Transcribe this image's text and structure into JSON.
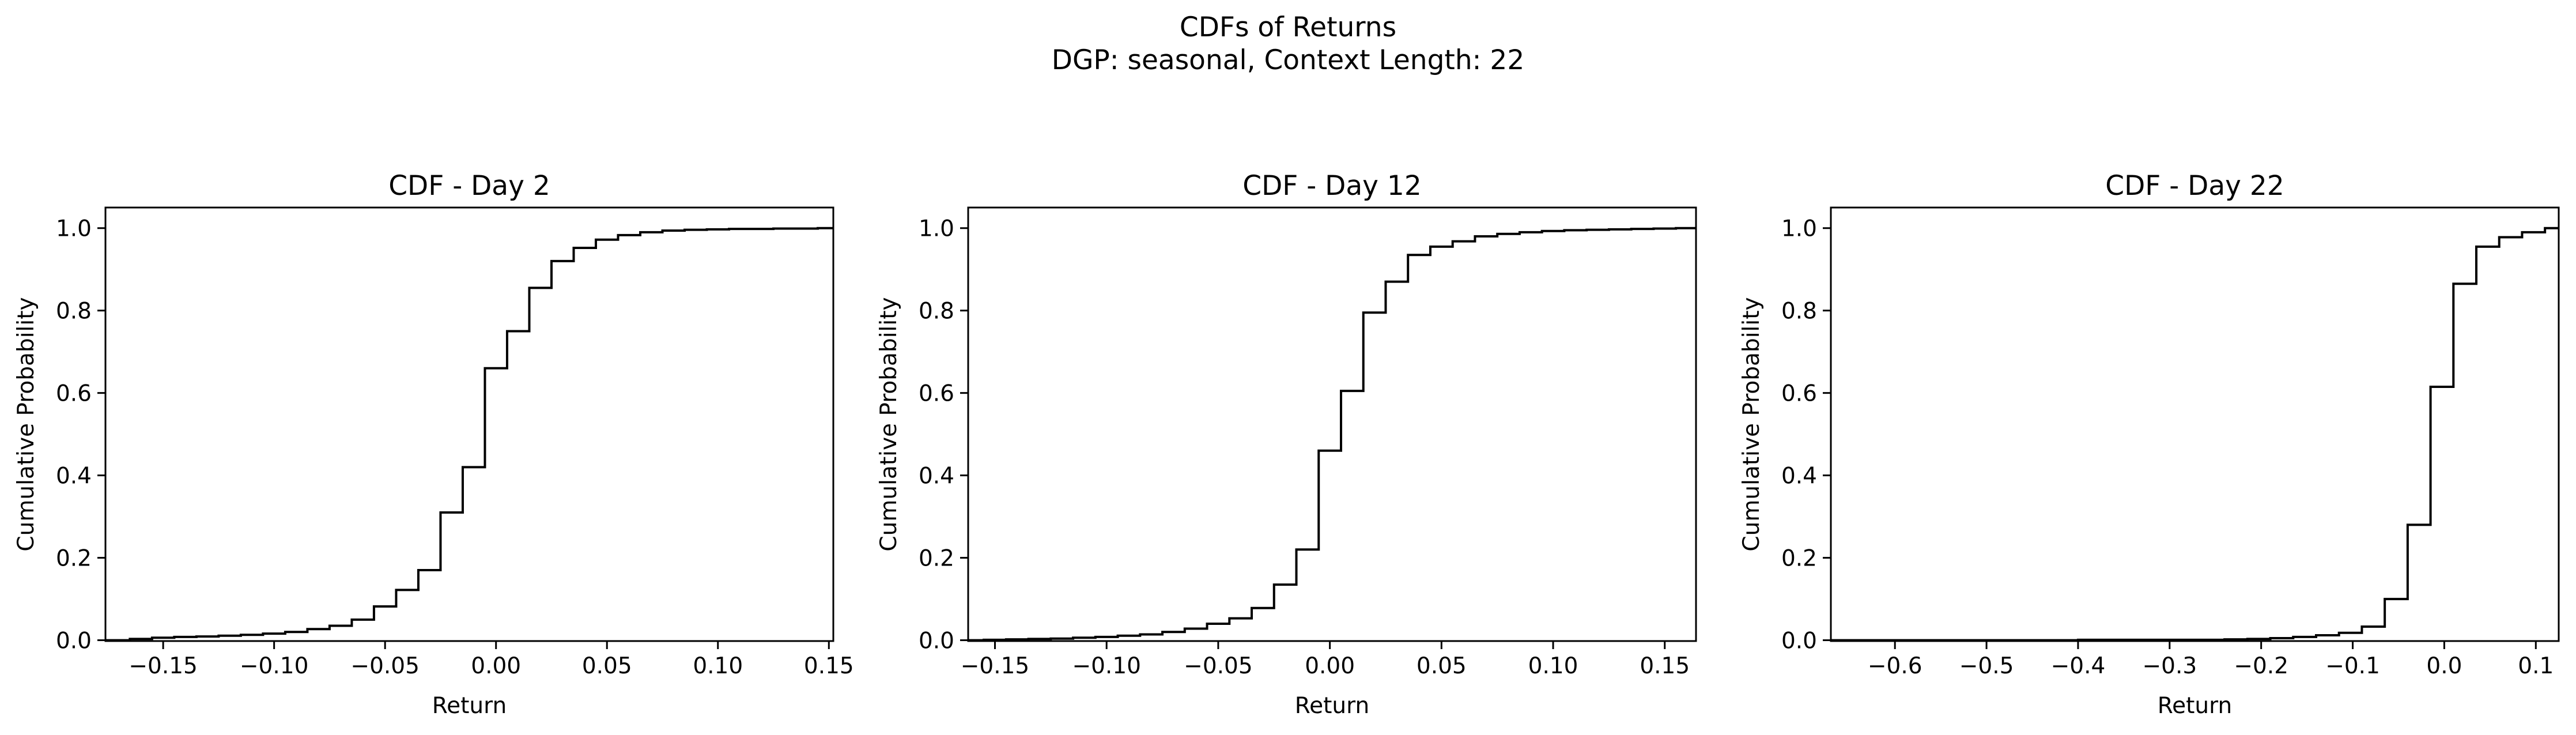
{
  "figure": {
    "title_line1": "CDFs of Returns",
    "title_line2": "DGP: seasonal, Context Length: 22"
  },
  "chart_data": [
    {
      "type": "line",
      "step": "post",
      "title": "CDF - Day 2",
      "xlabel": "Return",
      "ylabel": "Cumulative Probability",
      "xlim": [
        -0.176,
        0.152
      ],
      "ylim": [
        -0.002,
        1.05
      ],
      "xticks": [
        -0.15,
        -0.1,
        -0.05,
        0.0,
        0.05,
        0.1,
        0.15
      ],
      "xtick_labels": [
        "−0.15",
        "−0.10",
        "−0.05",
        "0.00",
        "0.05",
        "0.10",
        "0.15"
      ],
      "yticks": [
        0.0,
        0.2,
        0.4,
        0.6,
        0.8,
        1.0
      ],
      "ytick_labels": [
        "0.0",
        "0.2",
        "0.4",
        "0.6",
        "0.8",
        "1.0"
      ],
      "grid": false,
      "color": "#000000",
      "x": [
        -0.176,
        -0.165,
        -0.155,
        -0.145,
        -0.135,
        -0.125,
        -0.115,
        -0.105,
        -0.095,
        -0.085,
        -0.075,
        -0.065,
        -0.055,
        -0.045,
        -0.035,
        -0.025,
        -0.015,
        -0.005,
        0.005,
        0.015,
        0.025,
        0.035,
        0.045,
        0.055,
        0.065,
        0.075,
        0.085,
        0.095,
        0.105,
        0.115,
        0.125,
        0.135,
        0.145,
        0.152
      ],
      "y": [
        0.0,
        0.003,
        0.006,
        0.008,
        0.009,
        0.011,
        0.013,
        0.016,
        0.02,
        0.027,
        0.035,
        0.05,
        0.082,
        0.122,
        0.17,
        0.31,
        0.42,
        0.66,
        0.75,
        0.855,
        0.92,
        0.952,
        0.972,
        0.983,
        0.99,
        0.994,
        0.996,
        0.997,
        0.998,
        0.998,
        0.999,
        0.999,
        1.0,
        1.0
      ]
    },
    {
      "type": "line",
      "step": "post",
      "title": "CDF - Day 12",
      "xlabel": "Return",
      "ylabel": "Cumulative Probability",
      "xlim": [
        -0.162,
        0.164
      ],
      "ylim": [
        -0.002,
        1.05
      ],
      "xticks": [
        -0.15,
        -0.1,
        -0.05,
        0.0,
        0.05,
        0.1,
        0.15
      ],
      "xtick_labels": [
        "−0.15",
        "−0.10",
        "−0.05",
        "0.00",
        "0.05",
        "0.10",
        "0.15"
      ],
      "yticks": [
        0.0,
        0.2,
        0.4,
        0.6,
        0.8,
        1.0
      ],
      "ytick_labels": [
        "0.0",
        "0.2",
        "0.4",
        "0.6",
        "0.8",
        "1.0"
      ],
      "grid": false,
      "color": "#000000",
      "x": [
        -0.162,
        -0.155,
        -0.145,
        -0.135,
        -0.125,
        -0.115,
        -0.105,
        -0.095,
        -0.085,
        -0.075,
        -0.065,
        -0.055,
        -0.045,
        -0.035,
        -0.025,
        -0.015,
        -0.005,
        0.005,
        0.015,
        0.025,
        0.035,
        0.045,
        0.055,
        0.065,
        0.075,
        0.085,
        0.095,
        0.105,
        0.115,
        0.125,
        0.135,
        0.145,
        0.155,
        0.164
      ],
      "y": [
        0.0,
        0.001,
        0.002,
        0.003,
        0.004,
        0.006,
        0.008,
        0.011,
        0.014,
        0.02,
        0.028,
        0.04,
        0.053,
        0.078,
        0.135,
        0.22,
        0.46,
        0.605,
        0.795,
        0.87,
        0.935,
        0.955,
        0.968,
        0.98,
        0.986,
        0.99,
        0.993,
        0.995,
        0.996,
        0.997,
        0.998,
        0.999,
        1.0,
        1.0
      ]
    },
    {
      "type": "line",
      "step": "post",
      "title": "CDF - Day 22",
      "xlabel": "Return",
      "ylabel": "Cumulative Probability",
      "xlim": [
        -0.67,
        0.125
      ],
      "ylim": [
        -0.002,
        1.05
      ],
      "xticks": [
        -0.6,
        -0.5,
        -0.4,
        -0.3,
        -0.2,
        -0.1,
        0.0,
        0.1
      ],
      "xtick_labels": [
        "−0.6",
        "−0.5",
        "−0.4",
        "−0.3",
        "−0.2",
        "−0.1",
        "0.0",
        "0.1"
      ],
      "yticks": [
        0.0,
        0.2,
        0.4,
        0.6,
        0.8,
        1.0
      ],
      "ytick_labels": [
        "0.0",
        "0.2",
        "0.4",
        "0.6",
        "0.8",
        "1.0"
      ],
      "grid": false,
      "color": "#000000",
      "x": [
        -0.67,
        -0.4,
        -0.24,
        -0.215,
        -0.19,
        -0.165,
        -0.14,
        -0.115,
        -0.09,
        -0.065,
        -0.04,
        -0.015,
        0.01,
        0.035,
        0.06,
        0.085,
        0.11,
        0.125
      ],
      "y": [
        0.0,
        0.001,
        0.002,
        0.003,
        0.005,
        0.008,
        0.012,
        0.018,
        0.033,
        0.1,
        0.28,
        0.615,
        0.865,
        0.955,
        0.978,
        0.99,
        1.0,
        1.0
      ]
    }
  ]
}
